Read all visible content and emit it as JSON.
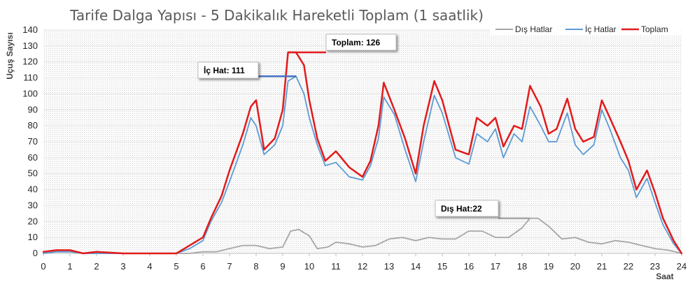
{
  "chart_data": {
    "type": "line",
    "title": "Tarife Dalga Yapısı - 5 Dakikalık Hareketli Toplam (1 saatlik)",
    "xlabel": "Saat",
    "ylabel": "Uçuş Sayısı",
    "xlim": [
      0,
      24
    ],
    "ylim": [
      0,
      140
    ],
    "xticks": [
      "0",
      "1",
      "2",
      "3",
      "4",
      "5",
      "6",
      "7",
      "8",
      "9",
      "10",
      "11",
      "12",
      "13",
      "14",
      "15",
      "16",
      "17",
      "18",
      "19",
      "20",
      "21",
      "22",
      "23",
      "24"
    ],
    "yticks": [
      "0",
      "10",
      "20",
      "30",
      "40",
      "50",
      "60",
      "70",
      "80",
      "90",
      "100",
      "110",
      "120",
      "130",
      "140"
    ],
    "grid": true,
    "legend_position": "top-right",
    "series": [
      {
        "name": "Dış Hatlar",
        "color": "#A6A6A6",
        "x": [
          0,
          0.5,
          1,
          1.5,
          2,
          3,
          4,
          5,
          5.5,
          6,
          6.5,
          7,
          7.5,
          8,
          8.5,
          9,
          9.3,
          9.6,
          10,
          10.3,
          10.7,
          11,
          11.5,
          12,
          12.5,
          13,
          13.5,
          14,
          14.5,
          15,
          15.5,
          16,
          16.5,
          17,
          17.5,
          18,
          18.3,
          18.6,
          19,
          19.5,
          20,
          20.5,
          21,
          21.5,
          22,
          22.5,
          23,
          23.5,
          24
        ],
        "values": [
          0,
          1,
          1,
          0,
          0,
          0,
          0,
          0,
          0,
          1,
          1,
          3,
          5,
          5,
          3,
          4,
          14,
          15,
          11,
          3,
          4,
          7,
          6,
          4,
          5,
          9,
          10,
          8,
          10,
          9,
          9,
          14,
          14,
          10,
          10,
          16,
          22,
          22,
          17,
          9,
          10,
          7,
          6,
          8,
          7,
          5,
          3,
          2,
          0
        ]
      },
      {
        "name": "İç Hatlar",
        "color": "#5B9BD5",
        "x": [
          0,
          0.5,
          1,
          1.5,
          2,
          3,
          4,
          5,
          5.5,
          6,
          6.3,
          6.7,
          7,
          7.5,
          7.8,
          8,
          8.3,
          8.7,
          9,
          9.2,
          9.5,
          9.8,
          10,
          10.3,
          10.6,
          11,
          11.5,
          12,
          12.3,
          12.6,
          12.8,
          13.2,
          13.6,
          14,
          14.3,
          14.7,
          15,
          15.5,
          16,
          16.3,
          16.7,
          17,
          17.3,
          17.7,
          18,
          18.3,
          18.7,
          19,
          19.3,
          19.7,
          20,
          20.3,
          20.7,
          21,
          21.3,
          21.7,
          22,
          22.3,
          22.7,
          23,
          23.3,
          23.7,
          24
        ],
        "values": [
          0,
          1,
          1,
          0,
          0,
          0,
          0,
          0,
          3,
          8,
          20,
          32,
          45,
          68,
          85,
          80,
          62,
          68,
          80,
          108,
          111,
          100,
          85,
          68,
          55,
          57,
          48,
          46,
          55,
          72,
          98,
          87,
          65,
          45,
          70,
          99,
          88,
          60,
          56,
          75,
          70,
          78,
          60,
          75,
          70,
          92,
          80,
          70,
          70,
          88,
          68,
          62,
          68,
          90,
          78,
          60,
          52,
          35,
          47,
          32,
          18,
          6,
          0
        ]
      },
      {
        "name": "Toplam",
        "color": "#E31A1C",
        "x": [
          0,
          0.5,
          1,
          1.5,
          2,
          3,
          4,
          5,
          5.5,
          6,
          6.3,
          6.7,
          7,
          7.5,
          7.8,
          8,
          8.3,
          8.7,
          9,
          9.2,
          9.5,
          9.8,
          10,
          10.3,
          10.6,
          11,
          11.5,
          12,
          12.3,
          12.6,
          12.8,
          13.2,
          13.6,
          14,
          14.3,
          14.7,
          15,
          15.5,
          16,
          16.3,
          16.7,
          17,
          17.3,
          17.7,
          18,
          18.3,
          18.7,
          19,
          19.3,
          19.7,
          20,
          20.3,
          20.7,
          21,
          21.3,
          21.7,
          22,
          22.3,
          22.7,
          23,
          23.3,
          23.7,
          24
        ],
        "values": [
          1,
          2,
          2,
          0,
          1,
          0,
          0,
          0,
          5,
          10,
          22,
          36,
          52,
          75,
          92,
          96,
          65,
          72,
          90,
          126,
          126,
          118,
          96,
          72,
          58,
          64,
          54,
          48,
          58,
          80,
          107,
          90,
          72,
          50,
          80,
          108,
          96,
          65,
          62,
          85,
          80,
          85,
          67,
          80,
          78,
          105,
          92,
          75,
          78,
          97,
          78,
          70,
          73,
          96,
          85,
          70,
          58,
          40,
          52,
          38,
          22,
          8,
          0
        ]
      }
    ],
    "annotations": [
      {
        "label": "Toplam: 126"
      },
      {
        "label": "İç Hat: 111"
      },
      {
        "label": "Dış Hat:22"
      }
    ]
  }
}
